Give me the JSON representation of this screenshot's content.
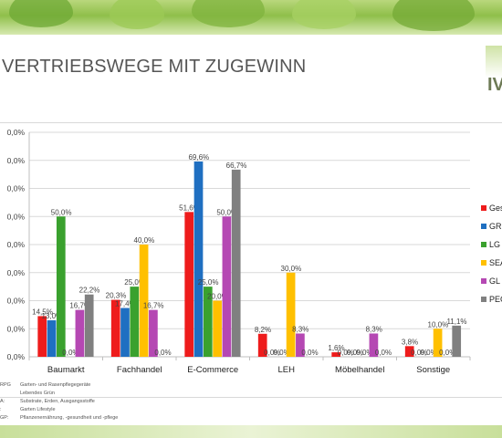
{
  "slide": {
    "title": "VERTRIEBSWEGE MIT ZUGEWINN",
    "logo_text": "IV"
  },
  "notes": [
    {
      "key": "RPG",
      "text": "Garten- und Rasenpflegegeräte"
    },
    {
      "key": "",
      "text": "Lebendes Grün"
    },
    {
      "key": "A:",
      "text": "Substrate, Erden, Ausgangsstoffe"
    },
    {
      "key": ":",
      "text": "Garten Lifestyle"
    },
    {
      "key": "GP:",
      "text": "Pflanzenernährung, -gesundheit und -pflege"
    }
  ],
  "chart_data": {
    "type": "bar",
    "categories": [
      "Baumarkt",
      "Fachhandel",
      "E-Commerce",
      "LEH",
      "Möbelhandel",
      "Sonstige"
    ],
    "ytick_labels": [
      "0,0%",
      "0,0%",
      "0,0%",
      "0,0%",
      "0,0%",
      "0,0%",
      "0,0%",
      "0,0%",
      "0,0%"
    ],
    "ylim": [
      0,
      80
    ],
    "legend_position": "right",
    "series": [
      {
        "name": "Ges",
        "color": "#ee1c1c",
        "values": [
          14.5,
          20.3,
          51.6,
          8.2,
          1.6,
          3.8
        ],
        "labels": [
          "14,5%",
          "20,3%",
          "51,6%",
          "8,2%",
          "1,6%",
          "3,8%"
        ]
      },
      {
        "name": "GR",
        "color": "#1f6fc1",
        "values": [
          13.0,
          17.4,
          69.6,
          0.0,
          0.0,
          0.0
        ],
        "labels": [
          "13,0%",
          "17,4%",
          "69,6%",
          "0,0%",
          "0,0%",
          "0,0%"
        ]
      },
      {
        "name": "LG",
        "color": "#3aa12e",
        "values": [
          50.0,
          25.0,
          25.0,
          0.0,
          0.0,
          0.0
        ],
        "labels": [
          "50,0%",
          "25,0%",
          "25,0%",
          "0,0%",
          "0,0%",
          "0,0%"
        ]
      },
      {
        "name": "SEA",
        "color": "#ffc000",
        "values": [
          0.0,
          40.0,
          20.0,
          30.0,
          0.0,
          10.0
        ],
        "labels": [
          "0,0%",
          "40,0%",
          "20,0%",
          "30,0%",
          "0,0%",
          "10,0%"
        ]
      },
      {
        "name": "GL",
        "color": "#b548b3",
        "values": [
          16.7,
          16.7,
          50.0,
          8.3,
          8.3,
          0.0
        ],
        "labels": [
          "16,7%",
          "16,7%",
          "50,0%",
          "8,3%",
          "8,3%",
          "0,0%"
        ]
      },
      {
        "name": "PEG",
        "color": "#808080",
        "values": [
          22.2,
          0.0,
          66.7,
          0.0,
          0.0,
          11.1
        ],
        "labels": [
          "22,2%",
          "0,0%",
          "66,7%",
          "0,0%",
          "0,0%",
          "11,1%"
        ]
      }
    ]
  }
}
